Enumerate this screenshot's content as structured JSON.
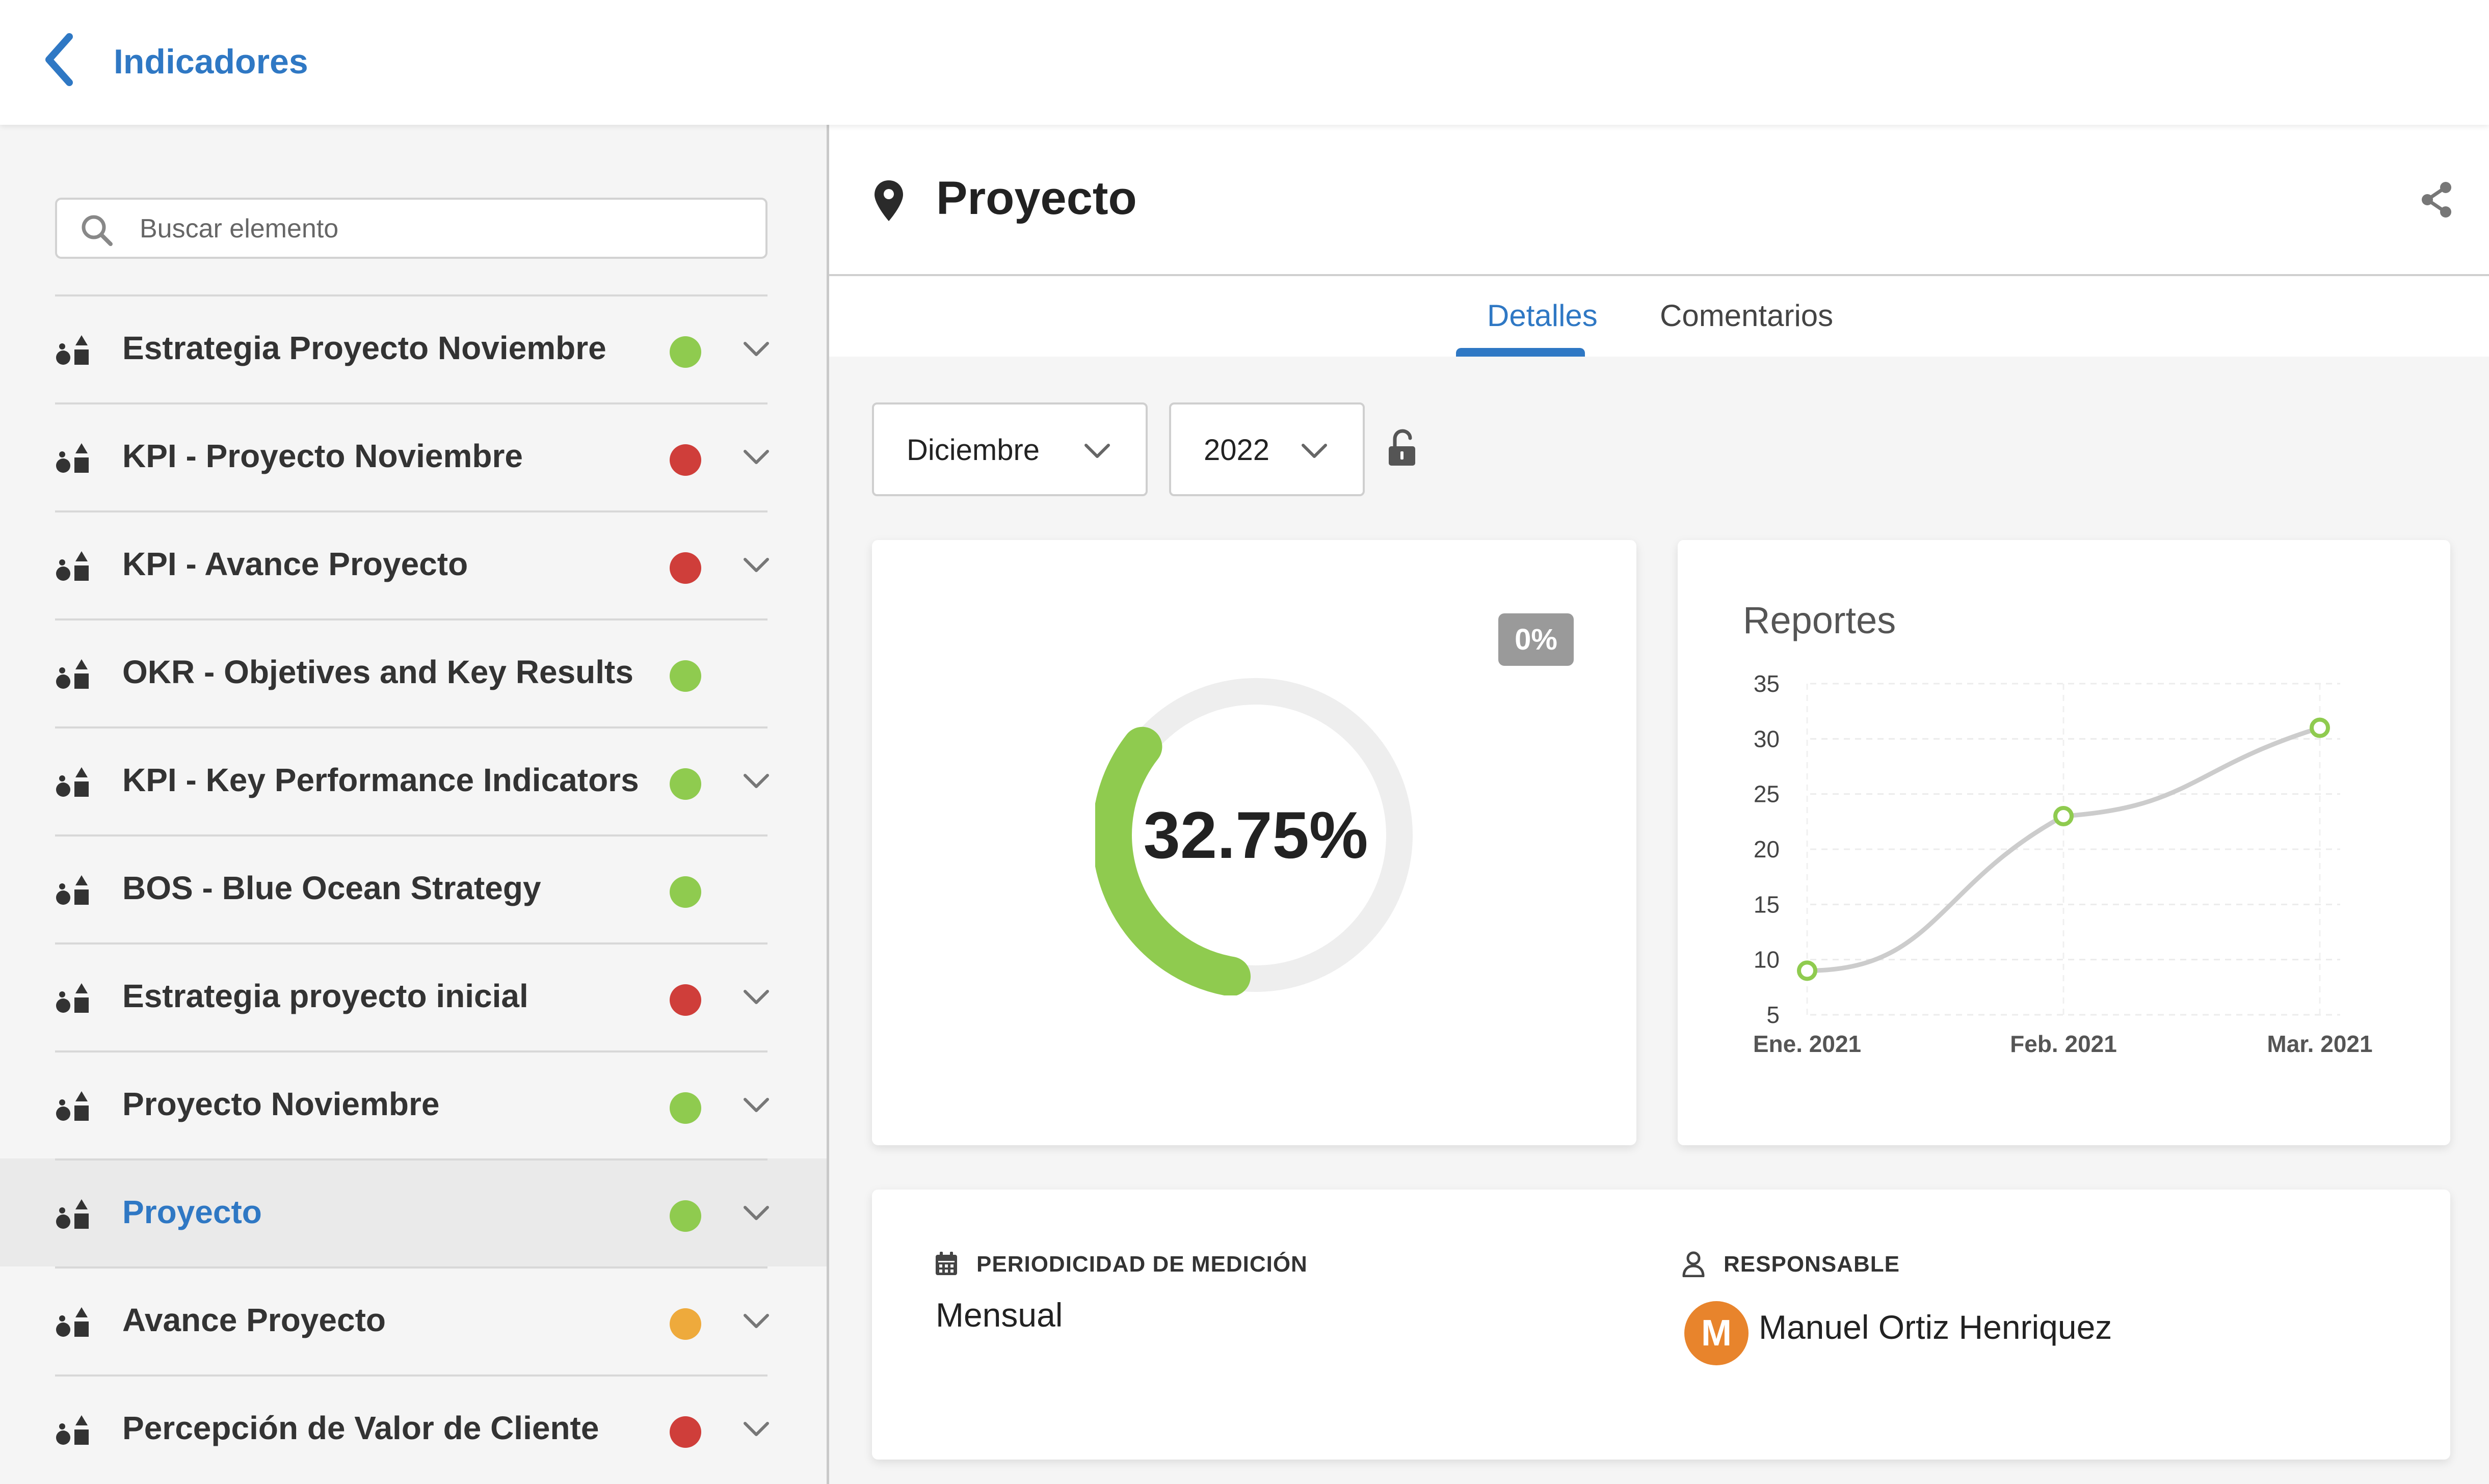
{
  "app": {
    "title": "Indicadores"
  },
  "sidebar": {
    "search_placeholder": "Buscar elemento",
    "items": [
      {
        "label": "Estrategia Proyecto Noviembre",
        "status": "green",
        "expandable": true
      },
      {
        "label": "KPI - Proyecto Noviembre",
        "status": "red",
        "expandable": true
      },
      {
        "label": "KPI - Avance Proyecto",
        "status": "red",
        "expandable": true
      },
      {
        "label": "OKR - Objetives and Key Results",
        "status": "green",
        "expandable": false
      },
      {
        "label": "KPI - Key Performance Indicators",
        "status": "green",
        "expandable": true
      },
      {
        "label": "BOS - Blue Ocean Strategy",
        "status": "green",
        "expandable": false
      },
      {
        "label": "Estrategia proyecto inicial",
        "status": "red",
        "expandable": true
      },
      {
        "label": "Proyecto Noviembre",
        "status": "green",
        "expandable": true
      },
      {
        "label": "Proyecto",
        "status": "green",
        "expandable": true,
        "active": true
      },
      {
        "label": "Avance Proyecto",
        "status": "orange",
        "expandable": true
      },
      {
        "label": "Percepción de Valor de Cliente",
        "status": "red",
        "expandable": true
      }
    ]
  },
  "status_colors": {
    "green": "#8fcb4f",
    "red": "#cf3e3a",
    "orange": "#eeaa3c"
  },
  "colors": {
    "accent": "#2f78c4",
    "avatar": "#e8842c",
    "progress": "#8fcb4f",
    "track": "#eeeeee"
  },
  "icons": {
    "back": "chevron-left-icon",
    "search": "search-icon",
    "item_kind": "shapes-icon",
    "expand": "chevron-down-icon",
    "location": "map-pin-icon",
    "share": "share-icon",
    "lock": "unlock-icon",
    "calendar": "calendar-icon",
    "user": "user-icon"
  },
  "main": {
    "title": "Proyecto",
    "tabs": [
      {
        "label": "Detalles",
        "selected": true
      },
      {
        "label": "Comentarios",
        "selected": false
      }
    ],
    "filters": {
      "month": "Diciembre",
      "year": "2022"
    },
    "progress": {
      "value_label": "32.75%",
      "value": 32.75,
      "badge": "0%"
    },
    "info": {
      "periodicity_label": "PERIODICIDAD DE MEDICIÓN",
      "periodicity_value": "Mensual",
      "owner_label": "RESPONSABLE",
      "owner_name": "Manuel Ortiz Henriquez",
      "owner_initial": "M"
    }
  },
  "chart_data": {
    "type": "line",
    "title": "Reportes",
    "categories": [
      "Ene. 2021",
      "Feb. 2021",
      "Mar. 2021"
    ],
    "values": [
      9,
      23,
      31
    ],
    "y_ticks": [
      5,
      10,
      15,
      20,
      25,
      30,
      35
    ],
    "ylim": [
      5,
      35
    ],
    "grid": true,
    "legend": "none"
  }
}
